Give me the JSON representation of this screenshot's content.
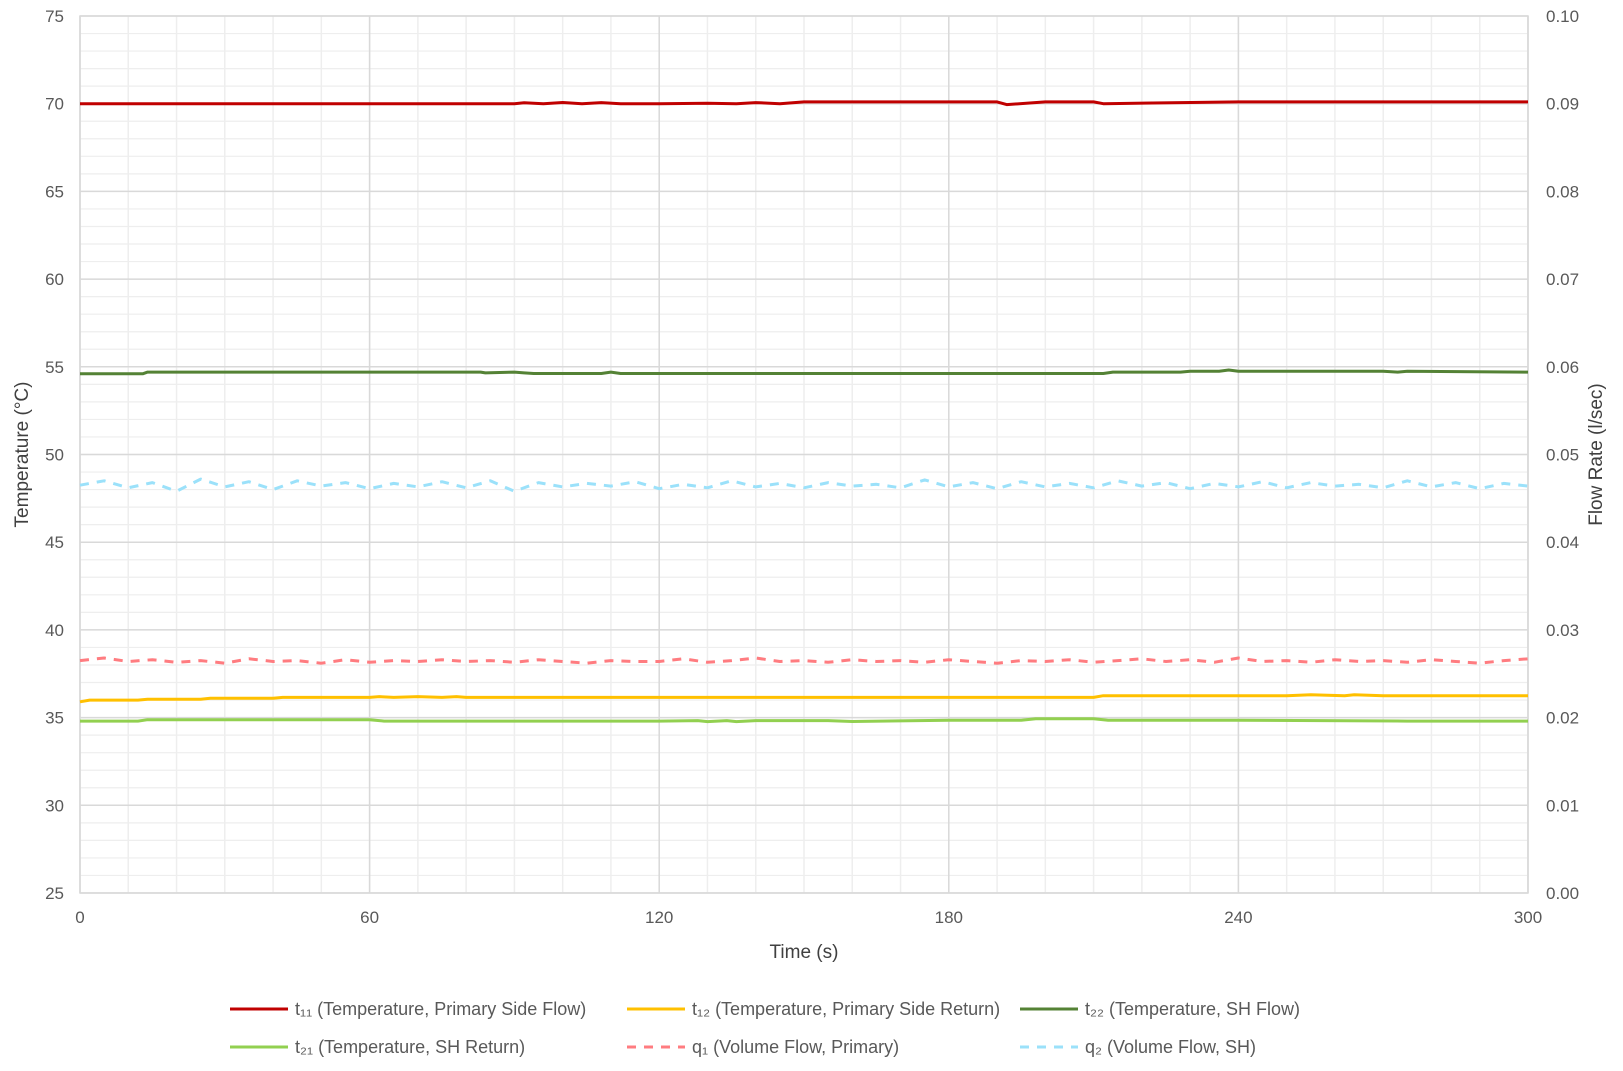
{
  "chart_data": {
    "type": "line",
    "title": "",
    "xlabel": "Time (s)",
    "ylabel": "Temperature (°C)",
    "y2label": "Flow Rate (l/sec)",
    "xlim": [
      0,
      300
    ],
    "ylim": [
      25,
      75
    ],
    "y2lim": [
      0,
      0.1
    ],
    "x_ticks": [
      0,
      60,
      120,
      180,
      240,
      300
    ],
    "x_tick_labels": [
      "0",
      "60",
      "120",
      "180",
      "240",
      "300"
    ],
    "y_ticks": [
      25,
      30,
      35,
      40,
      45,
      50,
      55,
      60,
      65,
      70,
      75
    ],
    "y_tick_labels": [
      "25",
      "30",
      "35",
      "40",
      "45",
      "50",
      "55",
      "60",
      "65",
      "70",
      "75"
    ],
    "y2_ticks": [
      0,
      0.01,
      0.02,
      0.03,
      0.04,
      0.05,
      0.06,
      0.07,
      0.08,
      0.09,
      0.1
    ],
    "y2_tick_labels": [
      "0.00",
      "0.01",
      "0.02",
      "0.03",
      "0.04",
      "0.05",
      "0.06",
      "0.07",
      "0.08",
      "0.09",
      "0.10"
    ],
    "grid": true,
    "legend_position": "bottom",
    "series": [
      {
        "name": "t₁₁ (Temperature, Primary Side Flow)",
        "axis": "left",
        "style": "solid",
        "color": "#C00000",
        "x": [
          0,
          30,
          60,
          90,
          92,
          96,
          100,
          104,
          108,
          112,
          120,
          130,
          136,
          140,
          145,
          150,
          180,
          190,
          192,
          200,
          210,
          212,
          240,
          270,
          300
        ],
        "y": [
          70.0,
          70.0,
          70.0,
          70.0,
          70.05,
          70.0,
          70.07,
          70.0,
          70.06,
          70.0,
          70.0,
          70.02,
          70.0,
          70.06,
          70.0,
          70.1,
          70.1,
          70.1,
          69.95,
          70.1,
          70.1,
          70.0,
          70.1,
          70.1,
          70.1
        ]
      },
      {
        "name": "t₁₂ (Temperature, Primary Side Return)",
        "axis": "left",
        "style": "solid",
        "color": "#FFC000",
        "x": [
          0,
          2,
          12,
          14,
          25,
          27,
          40,
          42,
          60,
          62,
          65,
          70,
          75,
          78,
          80,
          120,
          180,
          210,
          212,
          240,
          250,
          255,
          262,
          264,
          270,
          300
        ],
        "y": [
          35.9,
          36.0,
          36.0,
          36.05,
          36.05,
          36.1,
          36.1,
          36.15,
          36.15,
          36.2,
          36.15,
          36.2,
          36.15,
          36.2,
          36.15,
          36.15,
          36.15,
          36.15,
          36.25,
          36.25,
          36.25,
          36.3,
          36.25,
          36.3,
          36.25,
          36.25
        ]
      },
      {
        "name": "t₂₂ (Temperature, SH Flow)",
        "axis": "left",
        "style": "solid",
        "color": "#548235",
        "x": [
          0,
          13,
          14,
          60,
          83,
          84,
          90,
          92,
          94,
          108,
          110,
          112,
          120,
          180,
          212,
          214,
          228,
          230,
          236,
          238,
          240,
          270,
          273,
          275,
          300
        ],
        "y": [
          54.6,
          54.6,
          54.7,
          54.7,
          54.7,
          54.65,
          54.7,
          54.65,
          54.62,
          54.62,
          54.7,
          54.62,
          54.62,
          54.62,
          54.62,
          54.7,
          54.7,
          54.75,
          54.75,
          54.82,
          54.75,
          54.75,
          54.7,
          54.75,
          54.7
        ]
      },
      {
        "name": "t₂₁ (Temperature, SH Return)",
        "axis": "left",
        "style": "solid",
        "color": "#92D050",
        "x": [
          0,
          12,
          14,
          60,
          63,
          120,
          128,
          130,
          134,
          136,
          140,
          155,
          160,
          180,
          195,
          198,
          210,
          213,
          240,
          275,
          300
        ],
        "y": [
          34.8,
          34.8,
          34.88,
          34.88,
          34.8,
          34.8,
          34.83,
          34.77,
          34.83,
          34.77,
          34.83,
          34.83,
          34.78,
          34.85,
          34.85,
          34.93,
          34.93,
          34.85,
          34.85,
          34.8,
          34.8
        ]
      },
      {
        "name": "q₁ (Volume Flow, Primary)",
        "axis": "right",
        "style": "dashed",
        "color": "#FF7C80",
        "x": [
          0,
          5,
          10,
          15,
          20,
          25,
          30,
          35,
          40,
          45,
          50,
          55,
          60,
          65,
          70,
          75,
          80,
          85,
          90,
          95,
          100,
          105,
          110,
          115,
          120,
          125,
          130,
          135,
          140,
          145,
          150,
          155,
          160,
          165,
          170,
          175,
          180,
          185,
          190,
          195,
          200,
          205,
          210,
          215,
          220,
          225,
          230,
          235,
          240,
          245,
          250,
          255,
          260,
          265,
          270,
          275,
          280,
          285,
          290,
          295,
          300
        ],
        "y": [
          0.0265,
          0.0268,
          0.0264,
          0.0266,
          0.0263,
          0.0265,
          0.0262,
          0.0267,
          0.0264,
          0.0265,
          0.0262,
          0.0266,
          0.0263,
          0.0265,
          0.0264,
          0.0266,
          0.0264,
          0.0265,
          0.0263,
          0.0266,
          0.0264,
          0.0262,
          0.0265,
          0.0264,
          0.0264,
          0.0267,
          0.0263,
          0.0265,
          0.0268,
          0.0264,
          0.0265,
          0.0263,
          0.0266,
          0.0264,
          0.0265,
          0.0263,
          0.0266,
          0.0264,
          0.0262,
          0.0265,
          0.0264,
          0.0266,
          0.0263,
          0.0265,
          0.0267,
          0.0264,
          0.0266,
          0.0263,
          0.0268,
          0.0264,
          0.0265,
          0.0263,
          0.0266,
          0.0264,
          0.0265,
          0.0263,
          0.0266,
          0.0264,
          0.0262,
          0.0265,
          0.0267
        ]
      },
      {
        "name": "q₂ (Volume Flow, SH)",
        "axis": "right",
        "style": "dashed",
        "color": "#9BE1FA",
        "x": [
          0,
          5,
          10,
          15,
          20,
          25,
          30,
          35,
          40,
          45,
          50,
          55,
          60,
          65,
          70,
          75,
          80,
          85,
          90,
          95,
          100,
          105,
          110,
          115,
          120,
          125,
          130,
          135,
          140,
          145,
          150,
          155,
          160,
          165,
          170,
          175,
          180,
          185,
          190,
          195,
          200,
          205,
          210,
          215,
          220,
          225,
          230,
          235,
          240,
          245,
          250,
          255,
          260,
          265,
          270,
          275,
          280,
          285,
          290,
          295,
          300
        ],
        "y": [
          0.0465,
          0.047,
          0.0462,
          0.0468,
          0.0458,
          0.0472,
          0.0463,
          0.0469,
          0.046,
          0.047,
          0.0464,
          0.0468,
          0.0461,
          0.0467,
          0.0463,
          0.0469,
          0.0462,
          0.047,
          0.0458,
          0.0468,
          0.0463,
          0.0467,
          0.0464,
          0.0469,
          0.0461,
          0.0466,
          0.0462,
          0.047,
          0.0463,
          0.0467,
          0.0462,
          0.0468,
          0.0464,
          0.0466,
          0.0462,
          0.0471,
          0.0463,
          0.0468,
          0.0461,
          0.0469,
          0.0463,
          0.0467,
          0.0462,
          0.047,
          0.0464,
          0.0468,
          0.0461,
          0.0467,
          0.0463,
          0.0469,
          0.0462,
          0.0468,
          0.0464,
          0.0466,
          0.0462,
          0.047,
          0.0463,
          0.0468,
          0.0461,
          0.0467,
          0.0464
        ]
      }
    ]
  }
}
